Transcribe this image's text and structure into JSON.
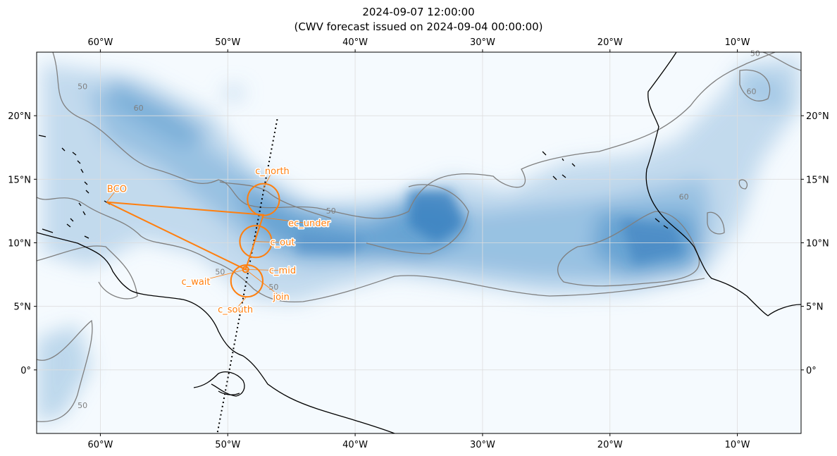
{
  "title": "2024-09-07 12:00:00",
  "subtitle": "(CWV forecast issued on 2024-09-04 00:00:00)",
  "map": {
    "lon_range": [
      -65,
      -5
    ],
    "lat_range": [
      -5,
      25
    ],
    "lon_ticks": [
      {
        "value": -60,
        "label": "60°W"
      },
      {
        "value": -50,
        "label": "50°W"
      },
      {
        "value": -40,
        "label": "40°W"
      },
      {
        "value": -30,
        "label": "30°W"
      },
      {
        "value": -20,
        "label": "20°W"
      },
      {
        "value": -10,
        "label": "10°W"
      }
    ],
    "lat_ticks": [
      {
        "value": 20,
        "label": "20°N"
      },
      {
        "value": 15,
        "label": "15°N"
      },
      {
        "value": 10,
        "label": "10°N"
      },
      {
        "value": 5,
        "label": "5°N"
      },
      {
        "value": 0,
        "label": "0°"
      }
    ],
    "contour_labels": [
      {
        "text": "50",
        "lon": -61.4,
        "lat": 22.1
      },
      {
        "text": "60",
        "lon": -57.0,
        "lat": 20.4
      },
      {
        "text": "50",
        "lon": -41.9,
        "lat": 12.3
      },
      {
        "text": "50",
        "lon": -50.6,
        "lat": 7.5
      },
      {
        "text": "50",
        "lon": -46.4,
        "lat": 6.3
      },
      {
        "text": "60",
        "lon": -8.9,
        "lat": 21.7
      },
      {
        "text": "50",
        "lon": -8.6,
        "lat": 24.7
      },
      {
        "text": "60",
        "lon": -14.2,
        "lat": 13.4
      },
      {
        "text": "50",
        "lon": -61.4,
        "lat": -3.0
      }
    ],
    "colors": {
      "cwv_high": "#2f77b8",
      "track": "#ff7f0e",
      "coast": "#000000",
      "contour": "#7f7f7f",
      "grid": "#dddddd"
    }
  },
  "flight": {
    "track_line": [
      [
        -59.5,
        13.2
      ],
      [
        -47.2,
        12.2
      ],
      [
        -48.6,
        7.9
      ],
      [
        -59.5,
        13.2
      ]
    ],
    "circles": [
      {
        "name": "c_north",
        "lon": -47.2,
        "lat": 13.4,
        "r_deg": 1.25
      },
      {
        "name": "c_out",
        "lon": -47.8,
        "lat": 10.1,
        "r_deg": 1.25
      },
      {
        "name": "c_south",
        "lon": -48.5,
        "lat": 7.0,
        "r_deg": 1.25
      },
      {
        "name": "c_mid",
        "lon": -48.6,
        "lat": 7.9,
        "r_deg": 0.22
      }
    ],
    "labels": [
      {
        "text": "BCO",
        "lon": -59.5,
        "lat": 13.2,
        "tlon": -58.7,
        "tlat": 14.0
      },
      {
        "text": "c_north",
        "lon": -47.2,
        "lat": 14.3,
        "tlon": -46.5,
        "tlat": 15.4
      },
      {
        "text": "ec_under",
        "lon": -47.3,
        "lat": 12.0,
        "tlon": -43.6,
        "tlat": 11.3
      },
      {
        "text": "c_out",
        "lon": -47.8,
        "lat": 10.1,
        "tlon": -45.7,
        "tlat": 9.8
      },
      {
        "text": "c_mid",
        "lon": -48.6,
        "lat": 7.9,
        "tlon": -45.7,
        "tlat": 7.6
      },
      {
        "text": "c_wait",
        "lon": -48.6,
        "lat": 7.9,
        "tlon": -52.5,
        "tlat": 6.7
      },
      {
        "text": "join",
        "lon": -48.6,
        "lat": 7.9,
        "tlon": -45.8,
        "tlat": 5.5
      },
      {
        "text": "c_south",
        "lon": -48.5,
        "lat": 5.8,
        "tlon": -49.4,
        "tlat": 4.5
      }
    ],
    "dotted_track": [
      [
        -50.8,
        -4.9
      ],
      [
        -46.1,
        19.8
      ]
    ]
  }
}
